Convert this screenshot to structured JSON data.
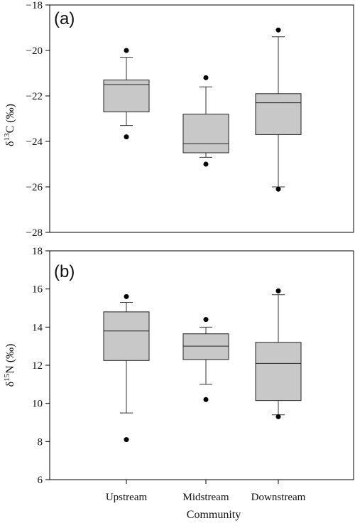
{
  "figure": {
    "xlabel": "Community",
    "panel_a_label": "(a)",
    "panel_b_label": "(b)",
    "ylabel_a": {
      "main": "δ",
      "sup": "13",
      "rest": "C (‰)"
    },
    "ylabel_b": {
      "main": "δ",
      "sup": "15",
      "rest": "N (‰)"
    }
  },
  "chart_data": [
    {
      "type": "boxplot",
      "panel": "(a)",
      "categories": [
        "Upstream",
        "Midstream",
        "Downstream"
      ],
      "ylim": [
        -28,
        -18
      ],
      "yticks": [
        -28,
        -26,
        -24,
        -22,
        -20,
        -18
      ],
      "box_fill": "#c8c8c8",
      "series": [
        {
          "category": "Upstream",
          "whisker_low": -23.3,
          "q1": -22.7,
          "median": -21.5,
          "q3": -21.3,
          "whisker_high": -20.3,
          "outliers": [
            -20.0,
            -23.8
          ]
        },
        {
          "category": "Midstream",
          "whisker_low": -24.7,
          "q1": -24.5,
          "median": -24.1,
          "q3": -22.8,
          "whisker_high": -21.6,
          "outliers": [
            -21.2,
            -25.0
          ]
        },
        {
          "category": "Downstream",
          "whisker_low": -26.0,
          "q1": -23.7,
          "median": -22.3,
          "q3": -21.9,
          "whisker_high": -19.4,
          "outliers": [
            -19.1,
            -26.1
          ]
        }
      ]
    },
    {
      "type": "boxplot",
      "panel": "(b)",
      "categories": [
        "Upstream",
        "Midstream",
        "Downstream"
      ],
      "ylim": [
        6,
        18
      ],
      "yticks": [
        6,
        8,
        10,
        12,
        14,
        16,
        18
      ],
      "box_fill": "#c8c8c8",
      "series": [
        {
          "category": "Upstream",
          "whisker_low": 9.5,
          "q1": 12.25,
          "median": 13.8,
          "q3": 14.8,
          "whisker_high": 15.3,
          "outliers": [
            15.6,
            8.1
          ]
        },
        {
          "category": "Midstream",
          "whisker_low": 11.0,
          "q1": 12.3,
          "median": 13.0,
          "q3": 13.65,
          "whisker_high": 14.0,
          "outliers": [
            14.4,
            10.2
          ]
        },
        {
          "category": "Downstream",
          "whisker_low": 9.4,
          "q1": 10.15,
          "median": 12.1,
          "q3": 13.2,
          "whisker_high": 15.7,
          "outliers": [
            15.9,
            9.3
          ]
        }
      ]
    }
  ]
}
